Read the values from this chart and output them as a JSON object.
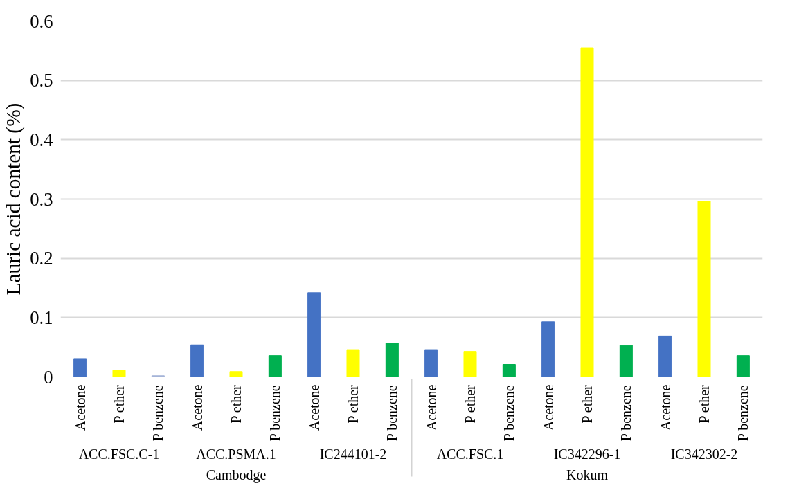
{
  "chart_data": {
    "type": "bar",
    "ylabel": "Lauric acid content (%)",
    "categories": [
      "Acetone",
      "P ether",
      "P benzene",
      "Acetone",
      "P ether",
      "P benzene",
      "Acetone",
      "P ether",
      "P benzene",
      "Acetone",
      "P ether",
      "P benzene",
      "Acetone",
      "P ether",
      "P benzene",
      "Acetone",
      "P ether",
      "P benzene"
    ],
    "values": [
      0.031,
      0.011,
      0.002,
      0.054,
      0.009,
      0.036,
      0.142,
      0.046,
      0.057,
      0.046,
      0.043,
      0.021,
      0.093,
      0.555,
      0.053,
      0.069,
      0.296,
      0.036
    ],
    "colors": [
      "#4472c4",
      "#ffff00",
      "#a5b4d8",
      "#4472c4",
      "#ffff00",
      "#00b050",
      "#4472c4",
      "#ffff00",
      "#00b050",
      "#4472c4",
      "#ffff00",
      "#00b050",
      "#4472c4",
      "#ffff00",
      "#00b050",
      "#4472c4",
      "#ffff00",
      "#00b050"
    ],
    "annotations": [
      "ACC.FSC.C-1",
      "ACC.PSMA.1",
      "IC244101-2",
      "ACC.FSC.1",
      "IC342296-1",
      "IC342302-2",
      "Cambodge",
      "Kokum"
    ],
    "ylim": [
      0,
      0.6
    ],
    "yticks": [
      0,
      0.1,
      0.2,
      0.3,
      0.4,
      0.5,
      0.6
    ],
    "grid": "y"
  }
}
